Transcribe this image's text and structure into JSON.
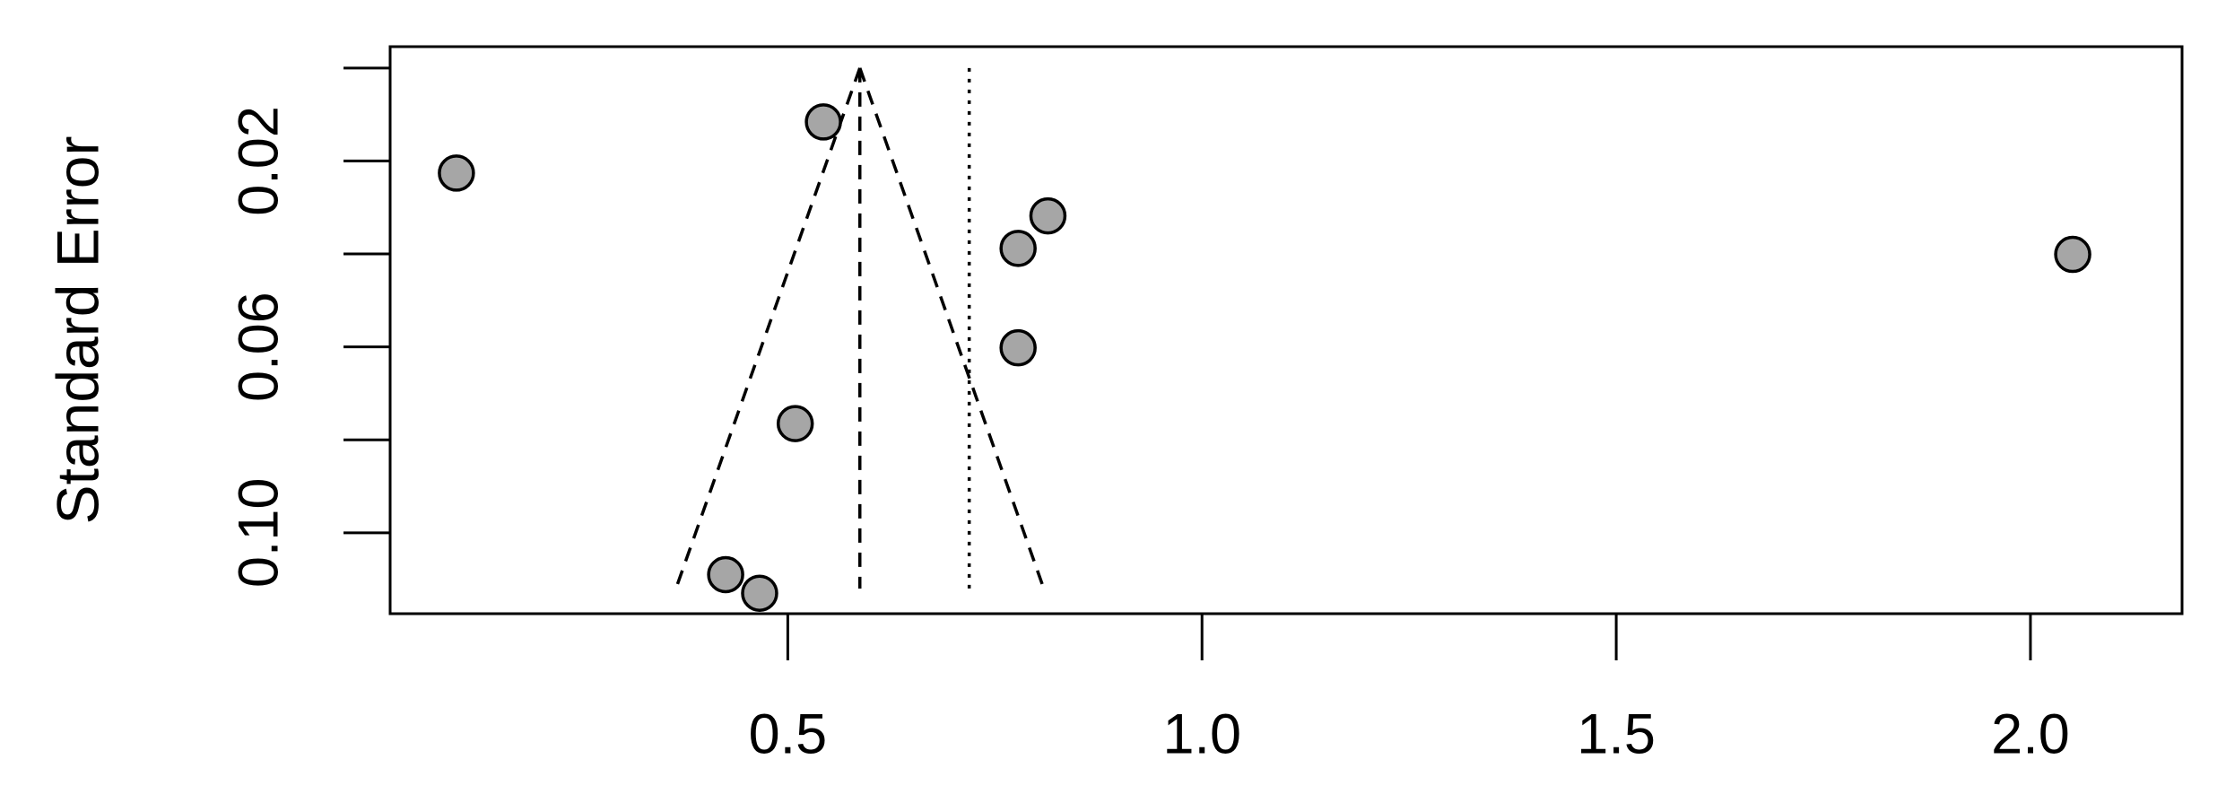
{
  "chart_data": {
    "type": "scatter",
    "y_label": "Standard Error",
    "x": [
      0.1,
      0.543,
      0.814,
      0.778,
      2.051,
      0.778,
      0.509,
      0.425,
      0.466
    ],
    "values": [
      0.0226,
      0.0116,
      0.0318,
      0.0388,
      0.0401,
      0.0602,
      0.0765,
      0.109,
      0.113
    ],
    "point_color": "#a6a6a6",
    "xlim": [
      0.02,
      2.183
    ],
    "ylim": [
      -0.0046,
      0.1174
    ],
    "y_inverted": true,
    "xticks": [
      0.5,
      {
        "value": 1,
        "label": "1.0"
      },
      1.5,
      {
        "value": 2,
        "label": "2.0"
      }
    ],
    "yticks": [
      0.02,
      0.06,
      {
        "value": 0.1,
        "label": "0.10"
      }
    ],
    "yminor_ticks": [
      0,
      0.04,
      0.08
    ],
    "funnel": {
      "apex": [
        0.587,
        0
      ],
      "left_base": [
        0.365,
        0.112
      ],
      "right_base": [
        0.809,
        0.112
      ]
    },
    "pooled_line": {
      "x": 0.587,
      "y_range": [
        0,
        0.112
      ]
    },
    "reference_line": 0.719
  }
}
